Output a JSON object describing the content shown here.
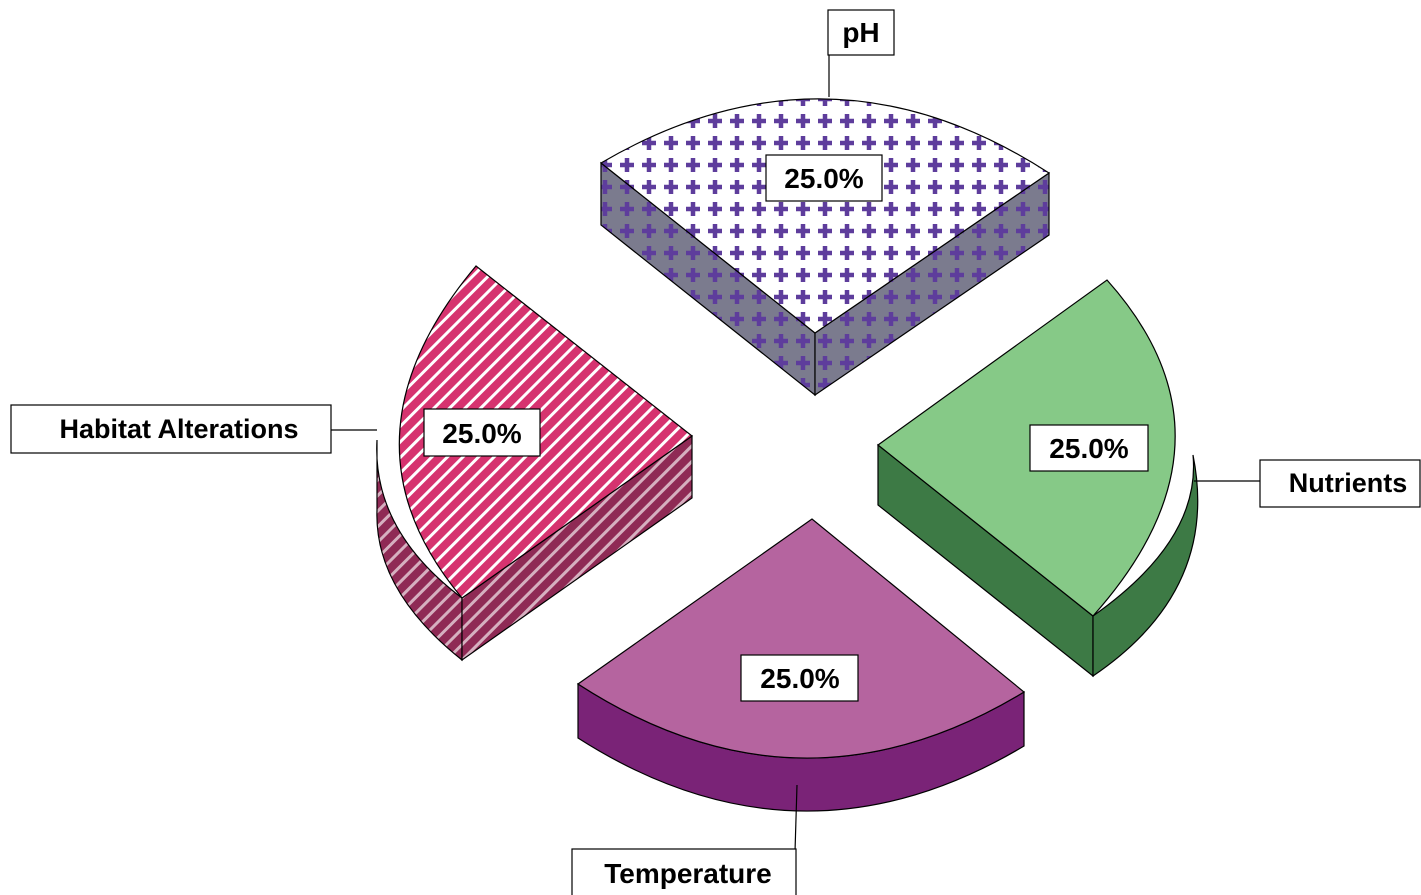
{
  "chart_data": {
    "type": "pie",
    "style": "3d-exploded",
    "title": "",
    "legend": "none",
    "slices": [
      {
        "category": "pH",
        "value": 25.0,
        "value_label": "25.0%",
        "pattern": "crosses",
        "color": "#ffffff",
        "pattern_color": "#5e3d9c",
        "side_color": "#7b7b8e"
      },
      {
        "category": "Nutrients",
        "value": 25.0,
        "value_label": "25.0%",
        "pattern": "solid",
        "color": "#86c987",
        "side_color": "#3d7a45"
      },
      {
        "category": "Temperature",
        "value": 25.0,
        "value_label": "25.0%",
        "pattern": "solid",
        "color": "#b5649f",
        "side_color": "#7a2377"
      },
      {
        "category": "Habitat Alterations",
        "value": 25.0,
        "value_label": "25.0%",
        "pattern": "diagonal-stripes",
        "color": "#d6336f",
        "pattern_color": "#ffffff",
        "side_color": "#8f2a55"
      }
    ]
  }
}
